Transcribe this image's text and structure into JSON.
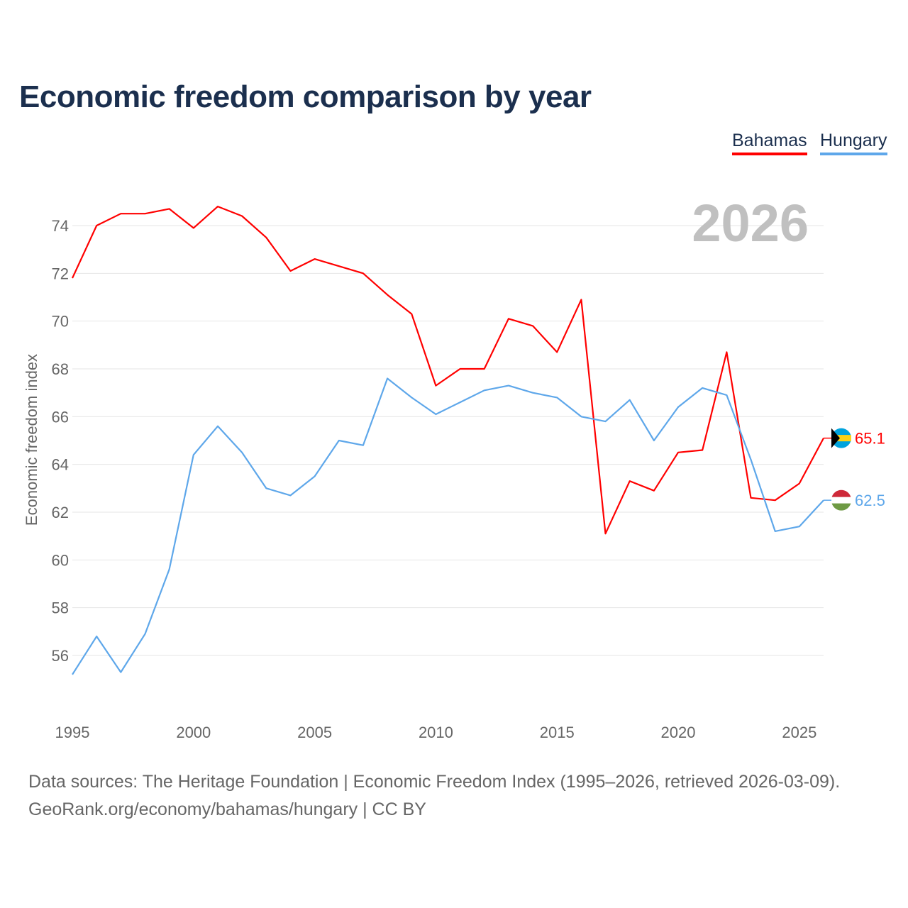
{
  "chart_data": {
    "type": "line",
    "title": "Economic freedom comparison by year",
    "ylabel": "Economic freedom index",
    "xlabel": "",
    "year_label": "2026",
    "ylim": [
      54.8,
      75
    ],
    "xlim": [
      1995,
      2026
    ],
    "yticks": [
      56,
      58,
      60,
      62,
      64,
      66,
      68,
      70,
      72,
      74
    ],
    "xticks": [
      1995,
      2000,
      2005,
      2010,
      2015,
      2020,
      2025
    ],
    "grid": true,
    "legend_position": "top-right",
    "x": [
      1995,
      1996,
      1997,
      1998,
      1999,
      2000,
      2001,
      2002,
      2003,
      2004,
      2005,
      2006,
      2007,
      2008,
      2009,
      2010,
      2011,
      2012,
      2013,
      2014,
      2015,
      2016,
      2017,
      2018,
      2019,
      2020,
      2021,
      2022,
      2023,
      2024,
      2025,
      2026
    ],
    "series": [
      {
        "name": "Bahamas",
        "color": "#ff0000",
        "end_label": "65.1",
        "values": [
          71.8,
          74.0,
          74.5,
          74.5,
          74.7,
          73.9,
          74.8,
          74.4,
          73.5,
          72.1,
          72.6,
          72.3,
          72.0,
          71.1,
          70.3,
          67.3,
          68.0,
          68.0,
          70.1,
          69.8,
          68.7,
          70.9,
          61.1,
          63.3,
          62.9,
          64.5,
          64.6,
          68.7,
          62.6,
          62.5,
          63.2,
          65.1
        ]
      },
      {
        "name": "Hungary",
        "color": "#5ea7ea",
        "end_label": "62.5",
        "values": [
          55.2,
          56.8,
          55.3,
          56.9,
          59.6,
          64.4,
          65.6,
          64.5,
          63.0,
          62.7,
          63.5,
          65.0,
          64.8,
          67.6,
          66.8,
          66.1,
          66.6,
          67.1,
          67.3,
          67.0,
          66.8,
          66.0,
          65.8,
          66.7,
          65.0,
          66.4,
          67.2,
          66.9,
          64.2,
          61.2,
          61.4,
          62.5
        ]
      }
    ]
  },
  "footer": {
    "line1": "Data sources: The Heritage Foundation | Economic Freedom Index (1995–2026, retrieved 2026-03-09).",
    "line2": "GeoRank.org/economy/bahamas/hungary | CC BY"
  }
}
